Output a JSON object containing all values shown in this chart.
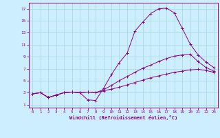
{
  "title": "",
  "xlabel": "Windchill (Refroidissement éolien,°C)",
  "background_color": "#cceeff",
  "grid_color": "#aadddd",
  "line_color": "#880088",
  "xlim": [
    -0.5,
    23.5
  ],
  "ylim": [
    0.5,
    18.0
  ],
  "xticks": [
    0,
    1,
    2,
    3,
    4,
    5,
    6,
    7,
    8,
    9,
    10,
    11,
    12,
    13,
    14,
    15,
    16,
    17,
    18,
    19,
    20,
    21,
    22,
    23
  ],
  "yticks": [
    1,
    3,
    5,
    7,
    9,
    11,
    13,
    15,
    17
  ],
  "curve1_x": [
    0,
    1,
    2,
    3,
    4,
    5,
    6,
    7,
    8,
    9,
    10,
    11,
    12,
    13,
    14,
    15,
    16,
    17,
    18,
    19,
    20,
    21,
    22,
    23
  ],
  "curve1_y": [
    2.8,
    3.0,
    2.2,
    2.6,
    3.0,
    3.1,
    3.0,
    1.8,
    1.7,
    3.7,
    6.0,
    8.0,
    9.6,
    13.3,
    14.8,
    16.2,
    17.0,
    17.1,
    16.3,
    13.7,
    11.1,
    9.3,
    8.1,
    7.2
  ],
  "curve2_x": [
    0,
    1,
    2,
    3,
    4,
    5,
    6,
    7,
    8,
    9,
    10,
    11,
    12,
    13,
    14,
    15,
    16,
    17,
    18,
    19,
    20,
    21,
    22,
    23
  ],
  "curve2_y": [
    2.8,
    3.0,
    2.2,
    2.6,
    3.0,
    3.1,
    3.0,
    3.1,
    3.0,
    3.5,
    4.2,
    5.0,
    5.7,
    6.4,
    7.1,
    7.6,
    8.2,
    8.7,
    9.1,
    9.3,
    9.4,
    8.2,
    7.2,
    6.6
  ],
  "curve3_x": [
    0,
    1,
    2,
    3,
    4,
    5,
    6,
    7,
    8,
    9,
    10,
    11,
    12,
    13,
    14,
    15,
    16,
    17,
    18,
    19,
    20,
    21,
    22,
    23
  ],
  "curve3_y": [
    2.8,
    3.0,
    2.2,
    2.6,
    3.0,
    3.1,
    3.0,
    3.1,
    3.0,
    3.3,
    3.6,
    3.9,
    4.3,
    4.7,
    5.1,
    5.5,
    5.8,
    6.1,
    6.4,
    6.6,
    6.8,
    6.9,
    6.7,
    6.4
  ]
}
